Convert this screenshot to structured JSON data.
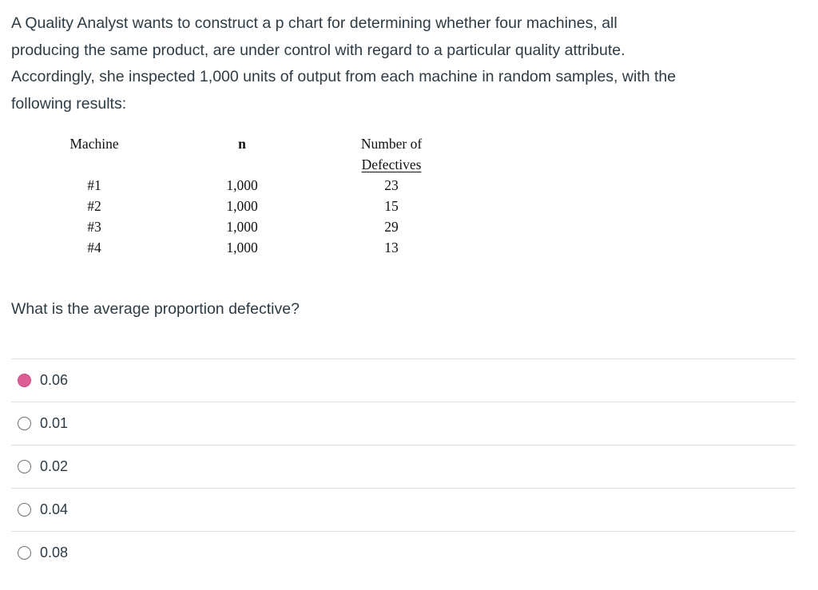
{
  "question": {
    "prompt_lines": [
      "A Quality Analyst wants to construct a p chart for determining whether four machines, all",
      "producing the same product, are under control with regard to a particular quality attribute.",
      "Accordingly, she inspected 1,000 units of output from each machine in random samples, with the",
      "following results:"
    ],
    "sub_prompt": "What is the average proportion defective?"
  },
  "table": {
    "headers": {
      "machine": "Machine",
      "n": "n",
      "defectives_line1": "Number of",
      "defectives_line2": "Defectives"
    },
    "rows": [
      {
        "machine": "#1",
        "n": "1,000",
        "defectives": "23"
      },
      {
        "machine": "#2",
        "n": "1,000",
        "defectives": "15"
      },
      {
        "machine": "#3",
        "n": "1,000",
        "defectives": "29"
      },
      {
        "machine": "#4",
        "n": "1,000",
        "defectives": "13"
      }
    ]
  },
  "options": [
    {
      "label": "0.06",
      "selected": true
    },
    {
      "label": "0.01",
      "selected": false
    },
    {
      "label": "0.02",
      "selected": false
    },
    {
      "label": "0.04",
      "selected": false
    },
    {
      "label": "0.08",
      "selected": false
    }
  ],
  "colors": {
    "selected_radio": "#DC5E94",
    "text": "#2D3B45",
    "divider": "#DEDEDE",
    "table_text": "#111111"
  }
}
